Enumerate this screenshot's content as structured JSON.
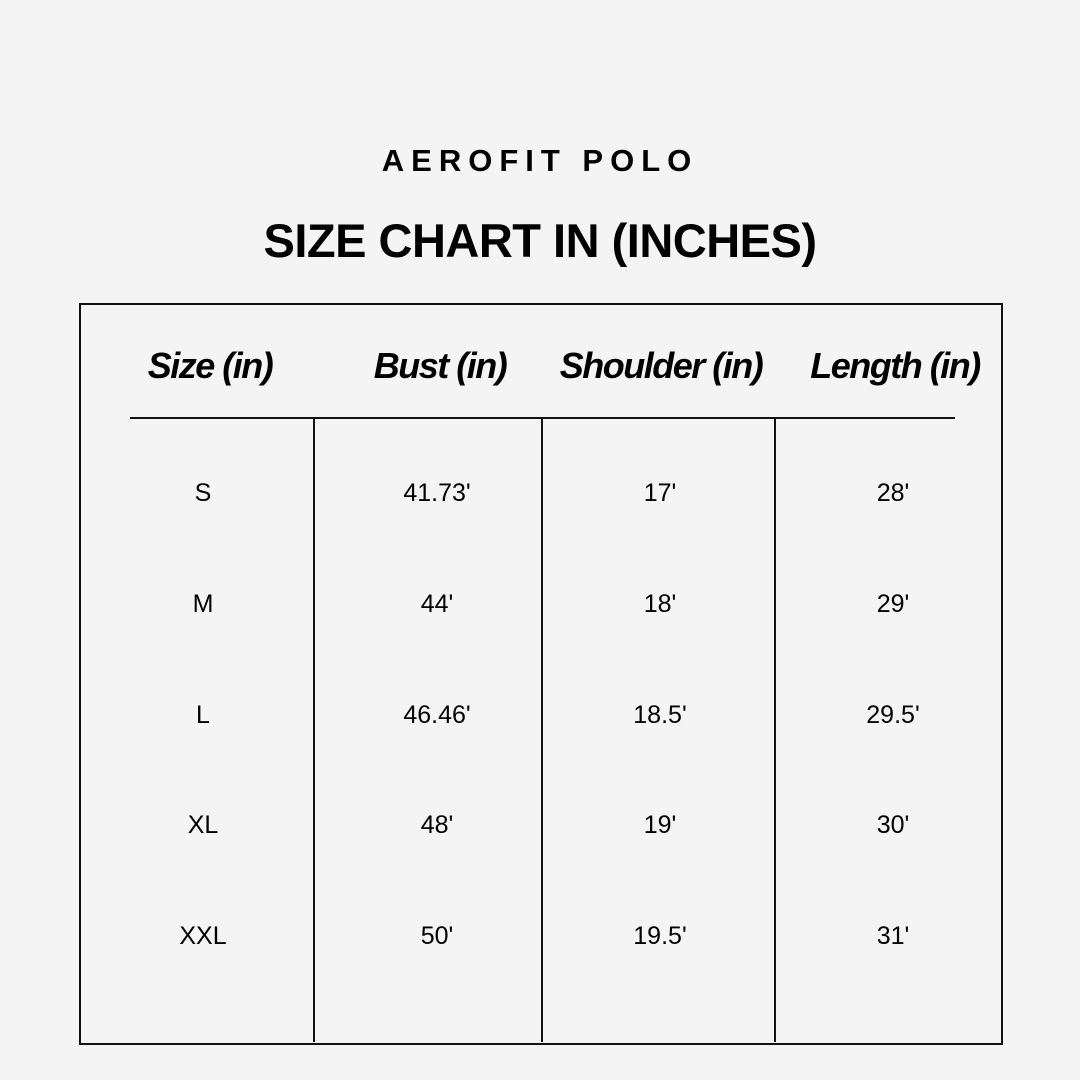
{
  "subtitle": "AEROFIT POLO",
  "title": "SIZE CHART IN (INCHES)",
  "table": {
    "headers": [
      "Size (in)",
      "Bust (in)",
      "Shoulder (in)",
      "Length (in)"
    ],
    "rows": [
      [
        "S",
        "41.73'",
        "17'",
        "28'"
      ],
      [
        "M",
        "44'",
        "18'",
        "29'"
      ],
      [
        "L",
        "46.46'",
        "18.5'",
        "29.5'"
      ],
      [
        "XL",
        "48'",
        "19'",
        "30'"
      ],
      [
        "XXL",
        "50'",
        "19.5'",
        "31'"
      ]
    ]
  }
}
